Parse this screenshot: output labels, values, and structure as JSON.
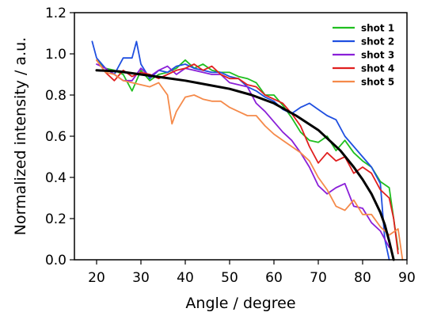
{
  "chart_data": {
    "type": "line",
    "xlabel": "Angle / degree",
    "ylabel": "Normalized intensity / a.u.",
    "xlim": [
      15,
      90
    ],
    "ylim": [
      0.0,
      1.2
    ],
    "xticks": [
      20,
      30,
      40,
      50,
      60,
      70,
      80,
      90
    ],
    "yticks": [
      0.0,
      0.2,
      0.4,
      0.6,
      0.8,
      1.0,
      1.2
    ],
    "ytick_labels": [
      "0.0",
      "0.2",
      "0.4",
      "0.6",
      "0.8",
      "1.0",
      "1.2"
    ],
    "grid": false,
    "legend": "top-right",
    "series": [
      {
        "name": "shot 1",
        "color": "#1fbf1f",
        "x": [
          20,
          22,
          24,
          26,
          28,
          30,
          32,
          34,
          36,
          38,
          40,
          42,
          44,
          46,
          48,
          50,
          52,
          54,
          56,
          58,
          60,
          62,
          64,
          66,
          68,
          70,
          72,
          74,
          76,
          78,
          80,
          82,
          84,
          86,
          87,
          88
        ],
        "y": [
          0.97,
          0.93,
          0.92,
          0.9,
          0.82,
          0.92,
          0.87,
          0.9,
          0.91,
          0.93,
          0.97,
          0.93,
          0.95,
          0.92,
          0.91,
          0.91,
          0.89,
          0.88,
          0.86,
          0.8,
          0.8,
          0.75,
          0.69,
          0.62,
          0.58,
          0.57,
          0.6,
          0.53,
          0.58,
          0.52,
          0.48,
          0.45,
          0.38,
          0.35,
          0.2,
          0.05
        ]
      },
      {
        "name": "shot 2",
        "color": "#1f4fe0",
        "x": [
          19,
          20,
          22,
          24,
          26,
          28,
          29,
          30,
          32,
          34,
          36,
          38,
          40,
          42,
          44,
          46,
          48,
          50,
          52,
          54,
          56,
          58,
          60,
          62,
          64,
          66,
          68,
          70,
          72,
          74,
          76,
          78,
          80,
          82,
          84,
          85,
          86
        ],
        "y": [
          1.06,
          0.98,
          0.93,
          0.9,
          0.98,
          0.98,
          1.06,
          0.95,
          0.88,
          0.92,
          0.91,
          0.94,
          0.95,
          0.93,
          0.92,
          0.91,
          0.91,
          0.89,
          0.88,
          0.84,
          0.82,
          0.79,
          0.77,
          0.73,
          0.71,
          0.74,
          0.76,
          0.73,
          0.7,
          0.68,
          0.6,
          0.55,
          0.5,
          0.45,
          0.37,
          0.1,
          0.0
        ]
      },
      {
        "name": "shot 3",
        "color": "#8a1fd8",
        "x": [
          20,
          22,
          24,
          26,
          28,
          30,
          32,
          34,
          36,
          38,
          40,
          42,
          44,
          46,
          48,
          50,
          52,
          54,
          56,
          58,
          60,
          62,
          64,
          66,
          68,
          70,
          72,
          74,
          76,
          78,
          80,
          82,
          84,
          86
        ],
        "y": [
          0.95,
          0.93,
          0.9,
          0.87,
          0.87,
          0.93,
          0.89,
          0.92,
          0.94,
          0.9,
          0.93,
          0.92,
          0.91,
          0.9,
          0.9,
          0.86,
          0.85,
          0.84,
          0.76,
          0.72,
          0.67,
          0.62,
          0.58,
          0.52,
          0.45,
          0.36,
          0.32,
          0.35,
          0.37,
          0.26,
          0.25,
          0.18,
          0.14,
          0.06
        ]
      },
      {
        "name": "shot 4",
        "color": "#e01f1f",
        "x": [
          20,
          22,
          24,
          26,
          28,
          30,
          32,
          34,
          36,
          38,
          40,
          42,
          44,
          46,
          48,
          50,
          52,
          54,
          56,
          58,
          60,
          62,
          64,
          66,
          68,
          70,
          72,
          74,
          76,
          78,
          80,
          82,
          84,
          86,
          87,
          88
        ],
        "y": [
          0.97,
          0.91,
          0.87,
          0.92,
          0.89,
          0.91,
          0.9,
          0.88,
          0.9,
          0.92,
          0.93,
          0.95,
          0.92,
          0.94,
          0.9,
          0.88,
          0.88,
          0.85,
          0.84,
          0.8,
          0.78,
          0.76,
          0.71,
          0.65,
          0.55,
          0.47,
          0.52,
          0.48,
          0.5,
          0.42,
          0.45,
          0.42,
          0.34,
          0.3,
          0.2,
          0.03
        ]
      },
      {
        "name": "shot 5",
        "color": "#f58a4a",
        "x": [
          20,
          22,
          24,
          26,
          28,
          30,
          32,
          34,
          36,
          37,
          38,
          40,
          42,
          44,
          46,
          48,
          50,
          52,
          54,
          56,
          58,
          60,
          62,
          64,
          66,
          68,
          70,
          72,
          74,
          76,
          78,
          80,
          82,
          84,
          86,
          88,
          89
        ],
        "y": [
          0.97,
          0.91,
          0.9,
          0.87,
          0.86,
          0.85,
          0.84,
          0.86,
          0.8,
          0.66,
          0.72,
          0.79,
          0.8,
          0.78,
          0.77,
          0.77,
          0.74,
          0.72,
          0.7,
          0.7,
          0.65,
          0.61,
          0.58,
          0.55,
          0.52,
          0.48,
          0.4,
          0.34,
          0.26,
          0.24,
          0.29,
          0.22,
          0.22,
          0.16,
          0.12,
          0.15,
          0.0
        ]
      },
      {
        "name": "",
        "color": "#000000",
        "x": [
          20,
          25,
          30,
          35,
          40,
          45,
          50,
          55,
          60,
          65,
          70,
          75,
          78,
          80,
          82,
          84,
          85,
          86,
          87
        ],
        "y": [
          0.92,
          0.915,
          0.9,
          0.885,
          0.87,
          0.85,
          0.83,
          0.8,
          0.76,
          0.7,
          0.63,
          0.53,
          0.45,
          0.39,
          0.32,
          0.23,
          0.17,
          0.09,
          0.0
        ]
      }
    ]
  }
}
